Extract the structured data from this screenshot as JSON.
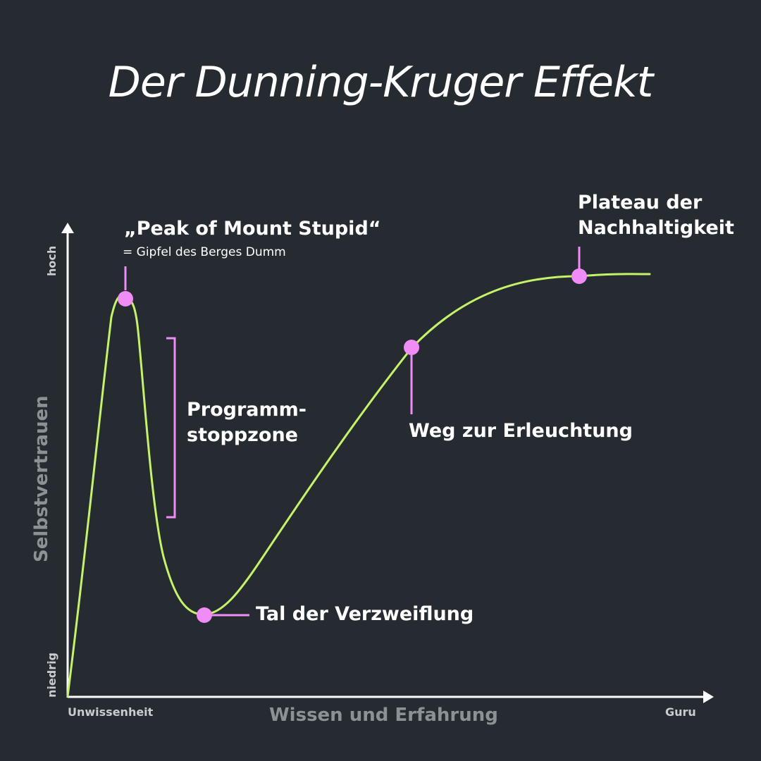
{
  "title": "Der Dunning-Kruger Effekt",
  "colors": {
    "background": "#252b31",
    "curve": "#c6f26a",
    "marker": "#f08cf5",
    "axis": "#ffffff",
    "axis_title": "#8c9196"
  },
  "axes": {
    "y_title": "Selbstvertrauen",
    "y_high": "hoch",
    "y_low": "niedrig",
    "x_title": "Wissen und Erfahrung",
    "x_low": "Unwissenheit",
    "x_high": "Guru"
  },
  "annotations": {
    "peak_title": "„Peak of Mount Stupid“",
    "peak_subtitle": "= Gipfel des Berges Dumm",
    "stop_line1": "Programm-",
    "stop_line2": "stoppzone",
    "valley": "Tal der Verzweiflung",
    "slope": "Weg zur Erleuchtung",
    "plateau_line1": "Plateau der",
    "plateau_line2": "Nachhaltigkeit"
  }
}
